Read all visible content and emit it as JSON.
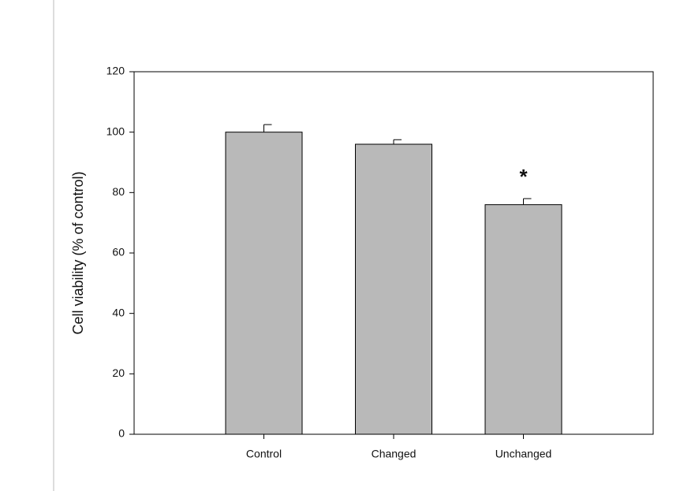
{
  "chart_data": {
    "type": "bar",
    "y_label": "Cell viability (% of control)",
    "categories": [
      "Control",
      "Changed",
      "Unchanged"
    ],
    "values": [
      100,
      96,
      76
    ],
    "errors": [
      2.5,
      1.5,
      2
    ],
    "color": "#b9b9b9",
    "annotations": [
      {
        "text": "*",
        "category": "Unchanged"
      }
    ],
    "ylim": [
      0,
      120
    ],
    "yticks": [
      0,
      20,
      40,
      60,
      80,
      100,
      120
    ],
    "grid": false
  }
}
